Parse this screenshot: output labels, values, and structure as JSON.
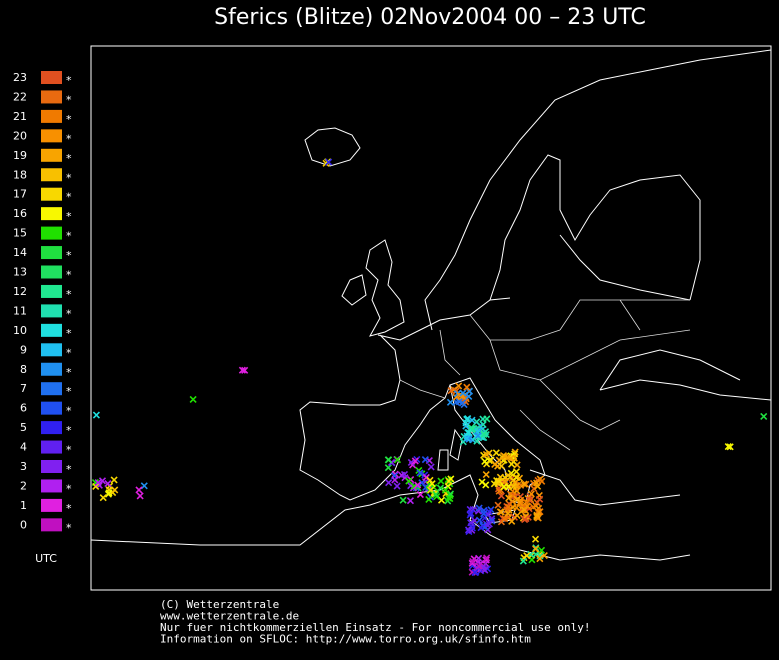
{
  "header": {
    "title": "Sferics (Blitze) 02Nov2004 00 – 23 UTC"
  },
  "legend": {
    "items": [
      {
        "label": "23",
        "color": "#e05020",
        "marker": "*"
      },
      {
        "label": "22",
        "color": "#e86a10",
        "marker": "*"
      },
      {
        "label": "21",
        "color": "#f07a00",
        "marker": "*"
      },
      {
        "label": "20",
        "color": "#f89000",
        "marker": "*"
      },
      {
        "label": "19",
        "color": "#f8a400",
        "marker": "*"
      },
      {
        "label": "18",
        "color": "#f8c000",
        "marker": "*"
      },
      {
        "label": "17",
        "color": "#f8d800",
        "marker": "*"
      },
      {
        "label": "16",
        "color": "#f8f800",
        "marker": "*"
      },
      {
        "label": "15",
        "color": "#20e000",
        "marker": "*"
      },
      {
        "label": "14",
        "color": "#20e040",
        "marker": "*"
      },
      {
        "label": "13",
        "color": "#20e060",
        "marker": "*"
      },
      {
        "label": "12",
        "color": "#20e890",
        "marker": "*"
      },
      {
        "label": "11",
        "color": "#20e0b0",
        "marker": "*"
      },
      {
        "label": "10",
        "color": "#20e0e0",
        "marker": "*"
      },
      {
        "label": "9",
        "color": "#20c0f0",
        "marker": "*"
      },
      {
        "label": "8",
        "color": "#2090f0",
        "marker": "*"
      },
      {
        "label": "7",
        "color": "#2070f0",
        "marker": "*"
      },
      {
        "label": "6",
        "color": "#2050f0",
        "marker": "*"
      },
      {
        "label": "5",
        "color": "#3020f0",
        "marker": "*"
      },
      {
        "label": "4",
        "color": "#6020f0",
        "marker": "*"
      },
      {
        "label": "3",
        "color": "#8020f0",
        "marker": "*"
      },
      {
        "label": "2",
        "color": "#b020f0",
        "marker": "*"
      },
      {
        "label": "1",
        "color": "#e020e0",
        "marker": "*"
      },
      {
        "label": "0",
        "color": "#c010c0",
        "marker": "*"
      }
    ],
    "unit": "UTC"
  },
  "footer": {
    "lines": [
      "(C) Wetterzentrale",
      "www.wetterzentrale.de",
      "Nur fuer nichtkommerziellen Einsatz - For noncommercial use only!",
      "Information on SFLOC: http://www.torro.org.uk/sfinfo.htm"
    ]
  }
}
